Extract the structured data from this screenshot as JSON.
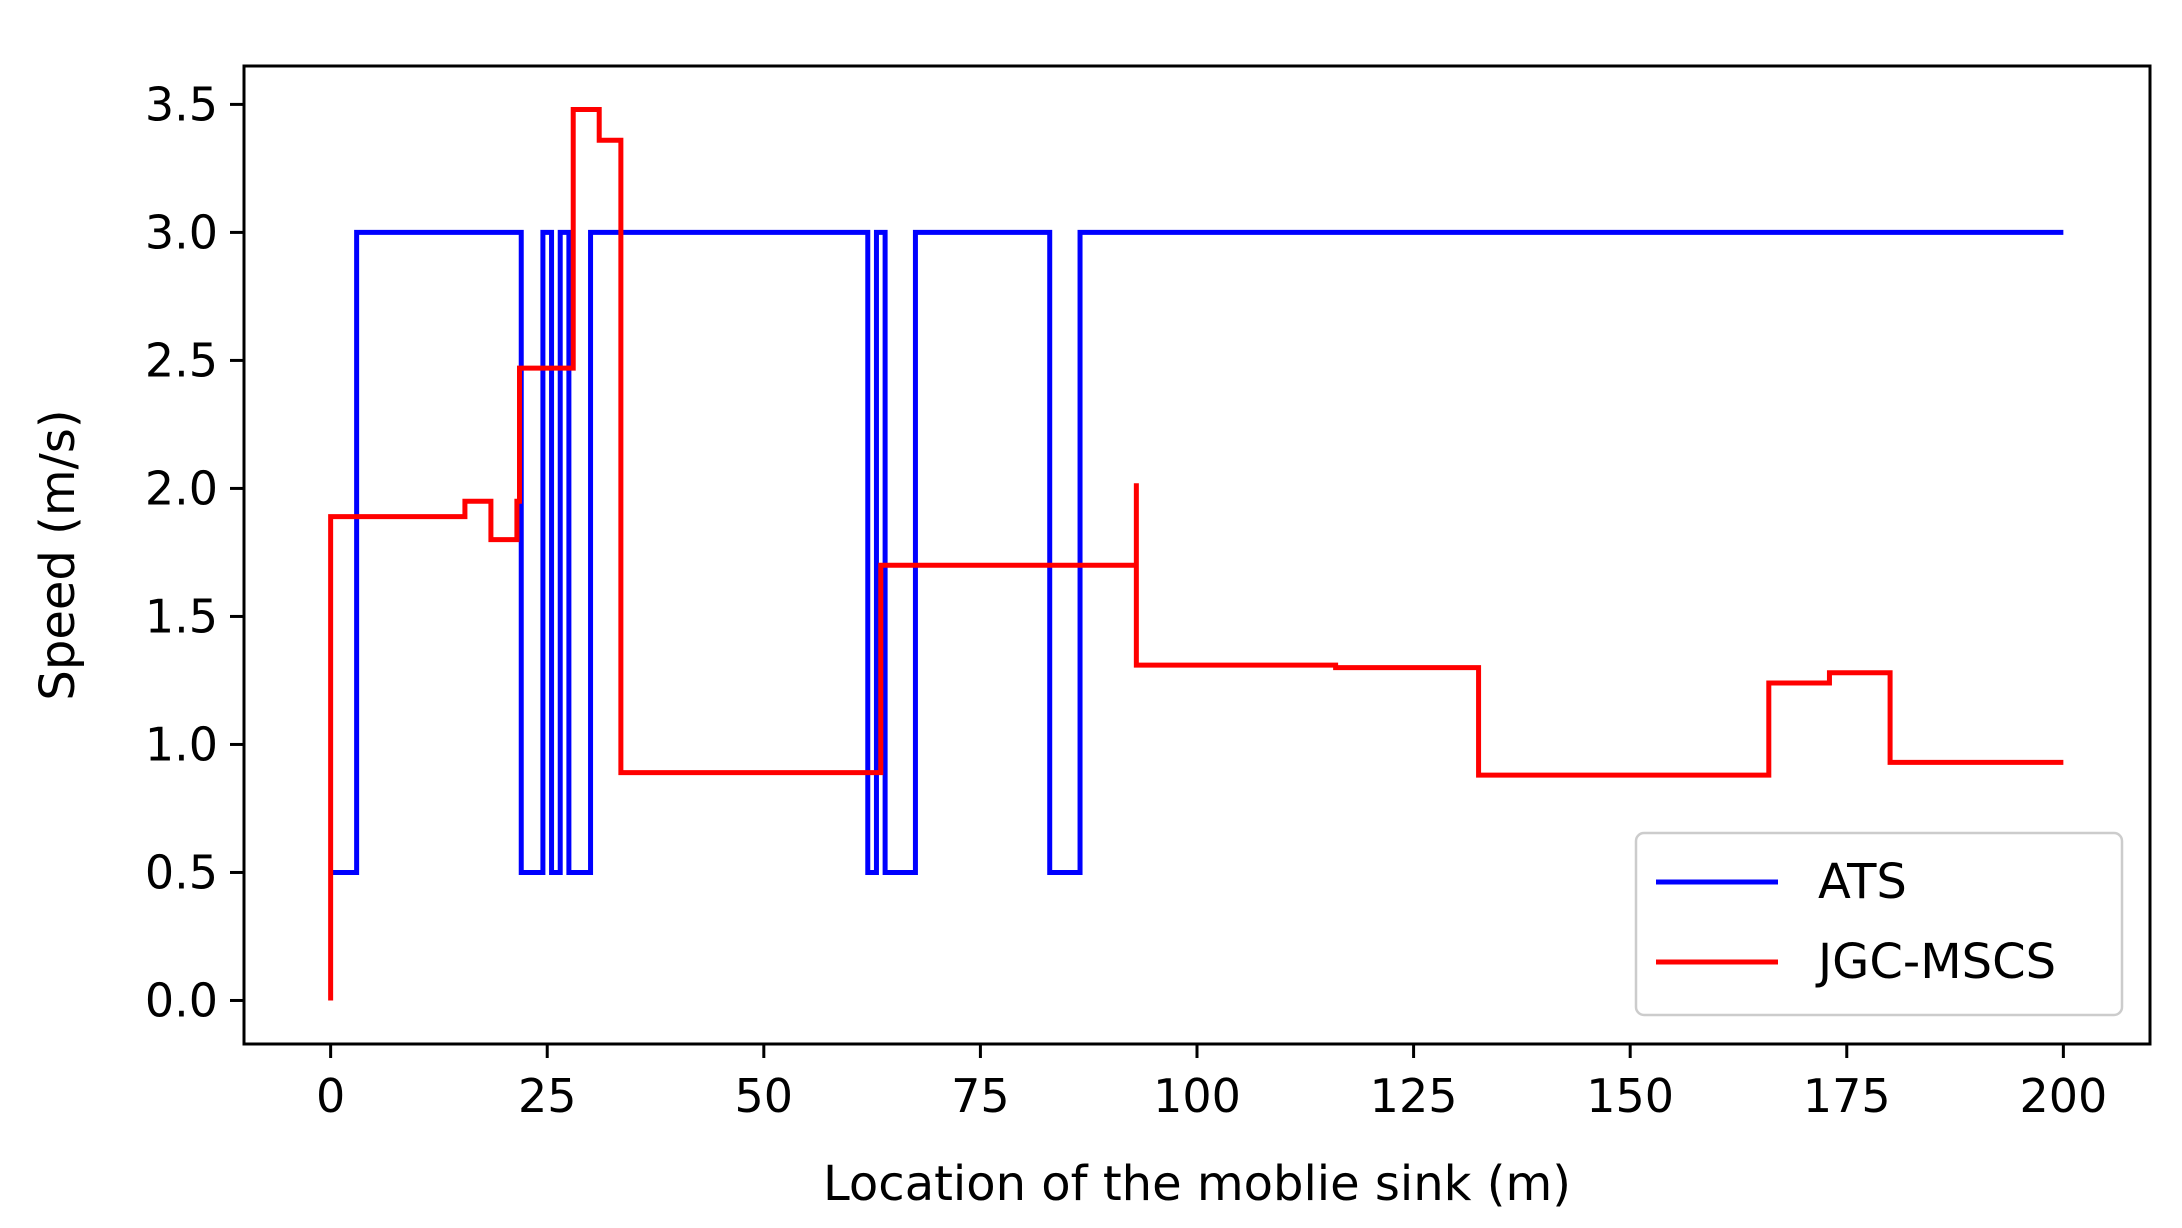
{
  "chart_data": {
    "type": "line",
    "title": "",
    "xlabel": "Location of the moblie sink (m)",
    "ylabel": "Speed (m/s)",
    "xlim": [
      -10,
      210
    ],
    "ylim": [
      -0.17,
      3.65
    ],
    "xticks": [
      0,
      25,
      50,
      75,
      100,
      125,
      150,
      175,
      200
    ],
    "xtick_labels": [
      "0",
      "25",
      "50",
      "75",
      "100",
      "125",
      "150",
      "175",
      "200"
    ],
    "yticks": [
      0.0,
      0.5,
      1.0,
      1.5,
      2.0,
      2.5,
      3.0,
      3.5
    ],
    "ytick_labels": [
      "0.0",
      "0.5",
      "1.0",
      "1.5",
      "2.0",
      "2.5",
      "3.0",
      "3.5"
    ],
    "grid": false,
    "legend_position": "lower-right",
    "series": [
      {
        "name": "ATS",
        "color": "#0000ff",
        "step": true,
        "x": [
          0,
          3,
          22,
          24.5,
          25.5,
          26.5,
          27.5,
          30,
          62,
          63,
          64,
          67.5,
          83,
          86.5,
          200
        ],
        "y": [
          0.5,
          3.0,
          0.5,
          3.0,
          0.5,
          3.0,
          0.5,
          3.0,
          0.5,
          3.0,
          0.5,
          3.0,
          0.5,
          3.0,
          3.0
        ]
      },
      {
        "name": "JGC-MSCS",
        "color": "#ff0000",
        "step": true,
        "x": [
          0,
          0,
          15.5,
          18.5,
          21.5,
          21.8,
          28,
          31,
          33.5,
          63,
          63.5,
          93,
          93,
          116,
          132.5,
          166,
          173,
          180,
          200
        ],
        "y": [
          0.0,
          1.89,
          1.95,
          1.8,
          1.95,
          2.47,
          3.48,
          3.36,
          0.89,
          0.89,
          1.7,
          2.02,
          1.31,
          1.3,
          0.88,
          1.24,
          1.28,
          0.93,
          0.93
        ]
      }
    ]
  }
}
